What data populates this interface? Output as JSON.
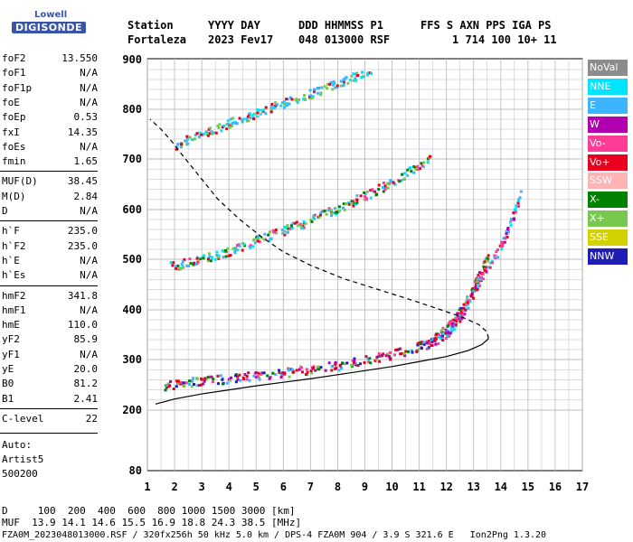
{
  "logo": {
    "line1": "Lowell",
    "line2": "DIGISONDE"
  },
  "header": {
    "labels": [
      "Station",
      "YYYY DAY",
      "DDD HHMMSS P1",
      "FFS S AXN PPS IGA PS"
    ],
    "values": [
      "Fortaleza",
      "2023 Fev17",
      "048 013000 RSF",
      "1 714 100 10+ 11"
    ]
  },
  "params": [
    {
      "name": "foF2",
      "value": "13.550"
    },
    {
      "name": "foF1",
      "value": "N/A"
    },
    {
      "name": "foF1p",
      "value": "N/A"
    },
    {
      "name": "foE",
      "value": "N/A"
    },
    {
      "name": "foEp",
      "value": "0.53"
    },
    {
      "name": "fxI",
      "value": "14.35"
    },
    {
      "name": "foEs",
      "value": "N/A"
    },
    {
      "name": "fmin",
      "value": "1.65"
    },
    {
      "name": "MUF(D)",
      "value": "38.45"
    },
    {
      "name": "M(D)",
      "value": "2.84"
    },
    {
      "name": "D",
      "value": "N/A"
    },
    {
      "name": "h`F",
      "value": "235.0"
    },
    {
      "name": "h`F2",
      "value": "235.0"
    },
    {
      "name": "h`E",
      "value": "N/A"
    },
    {
      "name": "h`Es",
      "value": "N/A"
    },
    {
      "name": "hmF2",
      "value": "341.8"
    },
    {
      "name": "hmF1",
      "value": "N/A"
    },
    {
      "name": "hmE",
      "value": "110.0"
    },
    {
      "name": "yF2",
      "value": "85.9"
    },
    {
      "name": "yF1",
      "value": "N/A"
    },
    {
      "name": "yE",
      "value": "20.0"
    },
    {
      "name": "B0",
      "value": "81.2"
    },
    {
      "name": "B1",
      "value": "2.41"
    },
    {
      "name": "C-level",
      "value": "22"
    }
  ],
  "auto": {
    "line1": "Auto:",
    "line2": "Artist5",
    "line3": "500200"
  },
  "legend": [
    {
      "label": "NoVal",
      "color": "#8c8c8c"
    },
    {
      "label": "NNE",
      "color": "#00e5ff"
    },
    {
      "label": "E",
      "color": "#3cb4ff"
    },
    {
      "label": "W",
      "color": "#b000b0"
    },
    {
      "label": "Vo-",
      "color": "#ff3c96"
    },
    {
      "label": "Vo+",
      "color": "#e8001e"
    },
    {
      "label": "SSW",
      "color": "#ffb4b4"
    },
    {
      "label": "X-",
      "color": "#008200"
    },
    {
      "label": "X+",
      "color": "#78c850"
    },
    {
      "label": "SSE",
      "color": "#d2d200"
    },
    {
      "label": "NNW",
      "color": "#1e1eb4"
    }
  ],
  "footer": {
    "d_row": "D     100  200  400  600  800 1000 1500 3000 [km]",
    "muf_row": "MUF  13.9 14.1 14.6 15.5 16.9 18.8 24.3 38.5 [MHz]",
    "info_row": "FZA0M_2023048013000.RSF / 320fx256h 50 kHz 5.0 km / DPS-4 FZA0M 904 / 3.9 S 321.6 E   Ion2Png 1.3.20"
  },
  "chart_data": {
    "type": "scatter",
    "x_ticks": [
      "1",
      "2",
      "3",
      "4",
      "5",
      "6",
      "7",
      "8",
      "9",
      "10",
      "11",
      "12",
      "13",
      "14",
      "15",
      "16",
      "17"
    ],
    "y_ticks": [
      "80",
      "200",
      "300",
      "400",
      "500",
      "600",
      "700",
      "800",
      "900"
    ],
    "xlim": [
      1,
      17
    ],
    "ylim": [
      80,
      900
    ],
    "y_scale": "custom-nonlinear",
    "grid": true,
    "series": [
      {
        "kind": "trace-o",
        "x": [
          1.6,
          1.9,
          2.2,
          2.6,
          3,
          3.5,
          4,
          4.5,
          5,
          5.5,
          6,
          6.5,
          7,
          7.5,
          8,
          8.5,
          9,
          9.5,
          10,
          10.5,
          11,
          11.3,
          11.6,
          11.9,
          12.1,
          12.3,
          12.5,
          12.7,
          12.9,
          13.1,
          13.3,
          13.5
        ],
        "y": [
          250,
          252,
          254,
          257,
          259,
          262,
          264,
          267,
          270,
          273,
          276,
          279,
          282,
          286,
          290,
          295,
          300,
          306,
          313,
          320,
          330,
          338,
          348,
          360,
          372,
          385,
          400,
          418,
          438,
          460,
          485,
          510
        ]
      },
      {
        "kind": "trace-x",
        "x": [
          11.2,
          11.5,
          11.8,
          12.1,
          12.3,
          12.5,
          12.7,
          12.9,
          13.1,
          13.3,
          13.6,
          13.9,
          14.1,
          14.3,
          14.5,
          14.7
        ],
        "y": [
          330,
          338,
          348,
          360,
          375,
          390,
          408,
          428,
          450,
          472,
          495,
          520,
          545,
          570,
          600,
          630
        ]
      },
      {
        "kind": "second-hop",
        "x": [
          1.8,
          2.2,
          2.6,
          3,
          3.4,
          3.8,
          4.2,
          4.6,
          5,
          5.4,
          5.8,
          6.2,
          6.6,
          7,
          7.4,
          7.8,
          8.2,
          8.6,
          9,
          9.4,
          9.8,
          10.2,
          10.6,
          11,
          11.4
        ],
        "y": [
          488,
          492,
          496,
          502,
          508,
          515,
          522,
          530,
          540,
          548,
          556,
          564,
          572,
          580,
          590,
          600,
          610,
          620,
          630,
          640,
          652,
          665,
          678,
          690,
          702
        ]
      },
      {
        "kind": "third-hop",
        "x": [
          2,
          2.4,
          2.8,
          3.2,
          3.6,
          4,
          4.4,
          4.8,
          5.2,
          5.6,
          6,
          6.4,
          6.8,
          7.2,
          7.6,
          8,
          8.4,
          8.8,
          9.2
        ],
        "y": [
          730,
          740,
          750,
          758,
          766,
          774,
          782,
          790,
          798,
          806,
          814,
          822,
          830,
          838,
          846,
          855,
          864,
          873,
          882
        ]
      },
      {
        "kind": "profile",
        "x": [
          1.3,
          2,
          3,
          4,
          5,
          6,
          7,
          8,
          9,
          10,
          11,
          12,
          12.8,
          13.3,
          13.55,
          13.5,
          13.2,
          12.6,
          11.8,
          10.8,
          9.5,
          8.2,
          7,
          6,
          5.2,
          4.4,
          3.6,
          3,
          2.4,
          1.9,
          1.5,
          1.1
        ],
        "y": [
          212,
          222,
          232,
          240,
          248,
          255,
          262,
          270,
          278,
          286,
          296,
          306,
          318,
          330,
          342,
          355,
          370,
          385,
          400,
          418,
          440,
          462,
          488,
          515,
          545,
          580,
          620,
          660,
          700,
          735,
          760,
          780
        ]
      }
    ]
  }
}
